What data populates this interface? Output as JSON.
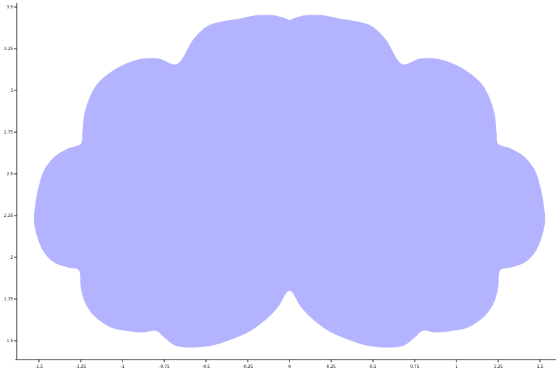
{
  "chart_data": {
    "type": "area",
    "title": "",
    "xlabel": "",
    "ylabel": "",
    "xlim": [
      -1.6,
      1.6
    ],
    "ylim": [
      1.43,
      3.54
    ],
    "grid": false,
    "fill_color": "#b3b3ff",
    "x_ticks": [
      -1.5,
      -1.25,
      -1,
      -0.75,
      -0.5,
      -0.25,
      0,
      0.25,
      0.5,
      0.75,
      1,
      1.25,
      1.5
    ],
    "x_tick_labels": [
      "-1.5",
      "-1.25",
      "-1",
      "-0.75",
      "-0.5",
      "-0.25",
      "0",
      "0.25",
      "0.5",
      "0.75",
      "1",
      "1.25",
      "1.5"
    ],
    "y_ticks": [
      1.5,
      1.75,
      2,
      2.25,
      2.5,
      2.75,
      3,
      3.25,
      3.5
    ],
    "y_tick_labels": [
      "1.5",
      "1.75",
      "2",
      "2.25",
      "2.5",
      "2.75",
      "3",
      "3.25",
      "3.5"
    ],
    "series": [
      {
        "values": [
          [
            0.0,
            3.42
          ],
          [
            -0.02,
            3.43
          ],
          [
            -0.05,
            3.44
          ],
          [
            -0.1,
            3.45
          ],
          [
            -0.2,
            3.45
          ],
          [
            -0.3,
            3.43
          ],
          [
            -0.42,
            3.41
          ],
          [
            -0.5,
            3.38
          ],
          [
            -0.58,
            3.3
          ],
          [
            -0.67,
            3.16
          ],
          [
            -0.78,
            3.19
          ],
          [
            -0.88,
            3.19
          ],
          [
            -0.98,
            3.16
          ],
          [
            -1.07,
            3.11
          ],
          [
            -1.15,
            3.04
          ],
          [
            -1.2,
            2.95
          ],
          [
            -1.23,
            2.85
          ],
          [
            -1.24,
            2.75
          ],
          [
            -1.25,
            2.68
          ],
          [
            -1.33,
            2.65
          ],
          [
            -1.41,
            2.6
          ],
          [
            -1.47,
            2.52
          ],
          [
            -1.5,
            2.43
          ],
          [
            -1.52,
            2.33
          ],
          [
            -1.53,
            2.22
          ],
          [
            -1.51,
            2.12
          ],
          [
            -1.47,
            2.03
          ],
          [
            -1.41,
            1.97
          ],
          [
            -1.33,
            1.94
          ],
          [
            -1.26,
            1.92
          ],
          [
            -1.25,
            1.82
          ],
          [
            -1.22,
            1.72
          ],
          [
            -1.16,
            1.64
          ],
          [
            -1.07,
            1.58
          ],
          [
            -0.98,
            1.56
          ],
          [
            -0.88,
            1.55
          ],
          [
            -0.8,
            1.56
          ],
          [
            -0.75,
            1.52
          ],
          [
            -0.68,
            1.47
          ],
          [
            -0.58,
            1.46
          ],
          [
            -0.47,
            1.47
          ],
          [
            -0.37,
            1.5
          ],
          [
            -0.25,
            1.55
          ],
          [
            -0.15,
            1.62
          ],
          [
            -0.07,
            1.7
          ],
          [
            0.0,
            1.8
          ],
          [
            0.07,
            1.7
          ],
          [
            0.15,
            1.62
          ],
          [
            0.25,
            1.55
          ],
          [
            0.37,
            1.5
          ],
          [
            0.47,
            1.47
          ],
          [
            0.58,
            1.46
          ],
          [
            0.68,
            1.47
          ],
          [
            0.75,
            1.52
          ],
          [
            0.8,
            1.56
          ],
          [
            0.88,
            1.55
          ],
          [
            0.98,
            1.56
          ],
          [
            1.07,
            1.58
          ],
          [
            1.16,
            1.64
          ],
          [
            1.22,
            1.72
          ],
          [
            1.25,
            1.82
          ],
          [
            1.26,
            1.92
          ],
          [
            1.33,
            1.94
          ],
          [
            1.41,
            1.97
          ],
          [
            1.47,
            2.03
          ],
          [
            1.51,
            2.12
          ],
          [
            1.53,
            2.22
          ],
          [
            1.52,
            2.33
          ],
          [
            1.5,
            2.43
          ],
          [
            1.47,
            2.52
          ],
          [
            1.41,
            2.6
          ],
          [
            1.33,
            2.65
          ],
          [
            1.25,
            2.68
          ],
          [
            1.24,
            2.75
          ],
          [
            1.23,
            2.85
          ],
          [
            1.2,
            2.95
          ],
          [
            1.15,
            3.04
          ],
          [
            1.07,
            3.11
          ],
          [
            0.98,
            3.16
          ],
          [
            0.88,
            3.19
          ],
          [
            0.78,
            3.19
          ],
          [
            0.67,
            3.16
          ],
          [
            0.58,
            3.3
          ],
          [
            0.5,
            3.38
          ],
          [
            0.42,
            3.41
          ],
          [
            0.3,
            3.43
          ],
          [
            0.2,
            3.45
          ],
          [
            0.1,
            3.45
          ],
          [
            0.05,
            3.44
          ],
          [
            0.02,
            3.43
          ],
          [
            0.0,
            3.42
          ]
        ]
      }
    ]
  }
}
